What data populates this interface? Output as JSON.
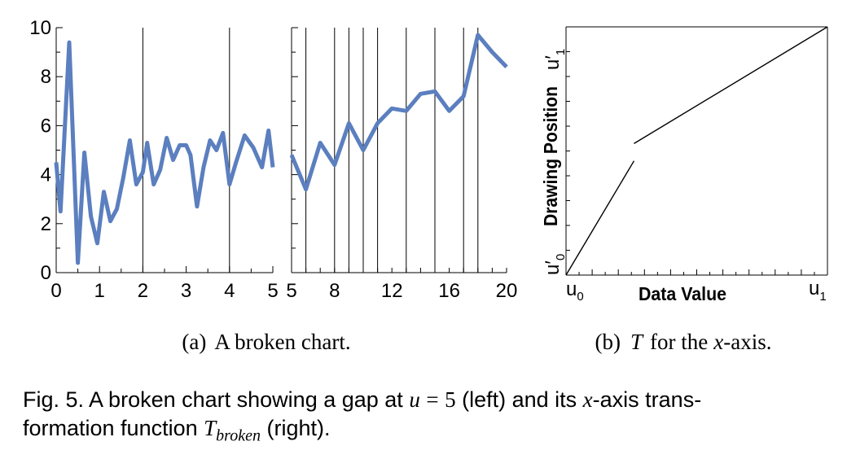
{
  "chart_data": [
    {
      "type": "line",
      "panel": "left",
      "x": [
        0,
        0.1,
        0.3,
        0.5,
        0.65,
        0.8,
        0.95,
        1.1,
        1.25,
        1.4,
        1.55,
        1.7,
        1.85,
        2.0,
        2.1,
        2.25,
        2.4,
        2.55,
        2.7,
        2.85,
        3.0,
        3.1,
        3.25,
        3.4,
        3.55,
        3.7,
        3.85,
        4.0,
        4.15,
        4.35,
        4.55,
        4.75,
        4.9,
        5.0
      ],
      "values": [
        4.5,
        2.5,
        9.4,
        0.4,
        4.9,
        2.3,
        1.2,
        3.3,
        2.1,
        2.6,
        3.9,
        5.4,
        3.6,
        4.1,
        5.3,
        3.6,
        4.2,
        5.5,
        4.6,
        5.2,
        5.2,
        4.8,
        2.7,
        4.3,
        5.4,
        5.0,
        5.7,
        3.6,
        4.5,
        5.6,
        5.1,
        4.3,
        5.8,
        4.3
      ],
      "xlim": [
        0,
        5
      ],
      "ylim": [
        0,
        10
      ],
      "xticks": [
        "0",
        "1",
        "2",
        "3",
        "4",
        "5"
      ],
      "yticks": [
        "0",
        "2",
        "4",
        "6",
        "8",
        "10"
      ],
      "vertical_gridlines_at": [
        2,
        4
      ],
      "color": "#5b7fbf"
    },
    {
      "type": "line",
      "panel": "right",
      "x": [
        5,
        6,
        7,
        8,
        9,
        10,
        11,
        12,
        13,
        14,
        15,
        16,
        17,
        18,
        19,
        20
      ],
      "values": [
        4.8,
        3.4,
        5.3,
        4.4,
        6.1,
        5.0,
        6.1,
        6.7,
        6.6,
        7.3,
        7.4,
        6.6,
        7.2,
        9.7,
        9.0,
        8.4
      ],
      "xlim": [
        5,
        20
      ],
      "xticks": [
        "5",
        "8",
        "12",
        "16",
        "20"
      ],
      "vertical_gridlines_at": [
        6,
        8,
        9,
        10,
        11,
        13,
        15,
        17,
        18
      ],
      "color": "#5b7fbf"
    },
    {
      "type": "line",
      "panel": "transformation",
      "segments": [
        [
          [
            0,
            0
          ],
          [
            0.26,
            0.46
          ]
        ],
        [
          [
            0.26,
            0.53
          ],
          [
            1,
            1
          ]
        ]
      ],
      "xlabel": "Data Value",
      "ylabel": "Drawing Position",
      "x_min_label": "u",
      "x_min_sub": "0",
      "x_max_label": "u",
      "x_max_sub": "1",
      "y_min_label": "u′",
      "y_min_sub": "0",
      "y_max_label": "u′",
      "y_max_sub": "1"
    }
  ],
  "subcaptions": {
    "a_label": "(a)",
    "a_text": "A broken chart.",
    "b_label": "(b)",
    "b_T": "T",
    "b_mid": "for the",
    "b_x": "x",
    "b_end": "-axis."
  },
  "caption": {
    "lead": "Fig. 5.  A broken chart showing a gap at",
    "u": "u",
    "eq": "=",
    "five": "5",
    "mid": "(left) and its",
    "x": "x",
    "tail1": "-axis trans-",
    "tail2": "formation function",
    "T": "T",
    "T_sub": "broken",
    "end": "(right)."
  }
}
